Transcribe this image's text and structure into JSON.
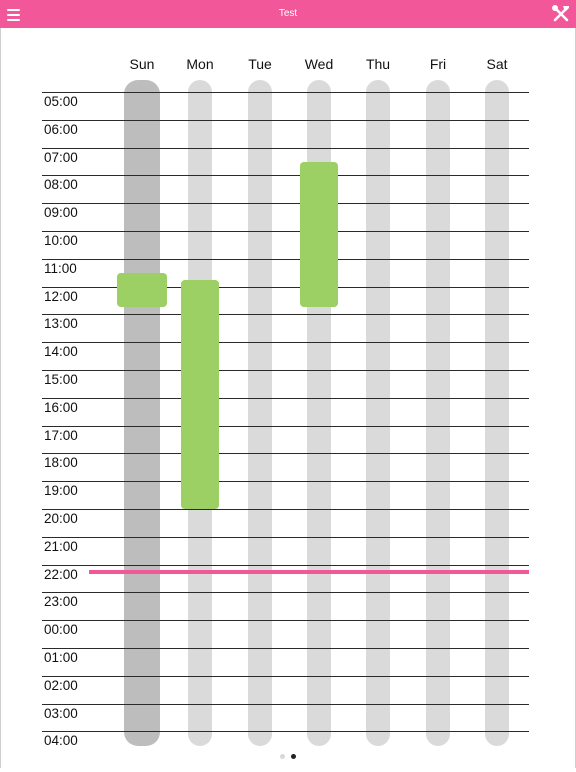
{
  "header": {
    "title": "Test",
    "menu_icon": "hamburger-menu-icon",
    "tools_icon": "tools-icon",
    "color": "#f2579a"
  },
  "days": [
    {
      "key": "sun",
      "label": "Sun",
      "today": true
    },
    {
      "key": "mon",
      "label": "Mon",
      "today": false
    },
    {
      "key": "tue",
      "label": "Tue",
      "today": false
    },
    {
      "key": "wed",
      "label": "Wed",
      "today": false
    },
    {
      "key": "thu",
      "label": "Thu",
      "today": false
    },
    {
      "key": "fri",
      "label": "Fri",
      "today": false
    },
    {
      "key": "sat",
      "label": "Sat",
      "today": false
    }
  ],
  "hours": [
    "05:00",
    "06:00",
    "07:00",
    "08:00",
    "09:00",
    "10:00",
    "11:00",
    "12:00",
    "13:00",
    "14:00",
    "15:00",
    "16:00",
    "17:00",
    "18:00",
    "19:00",
    "20:00",
    "21:00",
    "22:00",
    "23:00",
    "00:00",
    "01:00",
    "02:00",
    "03:00",
    "04:00"
  ],
  "events": [
    {
      "day": "sun",
      "start": "11:30",
      "end": "12:45",
      "color": "#9ccf64"
    },
    {
      "day": "mon",
      "start": "11:45",
      "end": "20:00",
      "color": "#9ccf64"
    },
    {
      "day": "wed",
      "start": "07:30",
      "end": "12:45",
      "color": "#9ccf64"
    }
  ],
  "current_time": "22:15",
  "pager": {
    "pages": 2,
    "active": 1
  }
}
